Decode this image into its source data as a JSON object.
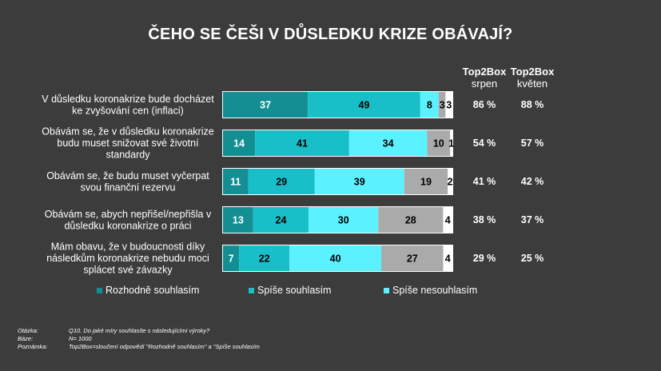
{
  "title": "ČEHO SE ČEŠI V DŮSLEDKU KRIZE OBÁVAJÍ?",
  "columns": {
    "srpen": {
      "line1": "Top2Box",
      "line2": "srpen"
    },
    "kveten": {
      "line1": "Top2Box",
      "line2": "květen"
    }
  },
  "legend": [
    "Rozhodně souhlasím",
    "Spíše souhlasím",
    "Spíše nesouhlasím"
  ],
  "colors": [
    "#138f94",
    "#18bfc8",
    "#5cf1ff",
    "#aaaaaa",
    "#ffffff"
  ],
  "footnotes": [
    {
      "key": "Otázka:",
      "value": "Q10. Do jaké míry souhlasíte s následujícími výroky?"
    },
    {
      "key": "Báze:",
      "value": "N= 1000"
    },
    {
      "key": "Poznámka:",
      "value": "Top2Box=sloučení odpovědí \"Rozhodně souhlasím\" a \"Spíše souhlasím"
    }
  ],
  "chart_data": {
    "type": "bar",
    "orientation": "horizontal",
    "stacked": true,
    "categories": [
      "V důsledku koronakrize bude docházet ke zvyšování cen (inflaci)",
      "Obávám se, že v důsledku koronakrize budu muset snižovat své životní standardy",
      "Obávám se, že budu muset vyčerpat svou finanční rezervu",
      "Obávám se, abych nepřišel/nepřišla v důsledku koronakrize o práci",
      "Mám obavu, že v budoucnosti díky následkům koronakrize nebudu moci splácet své závazky"
    ],
    "category_lines": [
      [
        "V důsledku koronakrize bude docházet",
        "ke zvyšování cen (inflaci)"
      ],
      [
        "Obávám se, že v důsledku koronakrize",
        "budu muset snižovat své životní",
        "standardy"
      ],
      [
        "Obávám se, že budu muset vyčerpat",
        "svou finanční rezervu"
      ],
      [
        "Obávám se, abych nepřišel/nepřišla v",
        "důsledku koronakrize o práci"
      ],
      [
        "Mám obavu, že v budoucnosti díky",
        "následkům koronakrize nebudu moci",
        "splácet své závazky"
      ]
    ],
    "series": [
      {
        "name": "Rozhodně souhlasím",
        "values": [
          37,
          14,
          11,
          13,
          7
        ]
      },
      {
        "name": "Spíše souhlasím",
        "values": [
          49,
          41,
          29,
          24,
          22
        ]
      },
      {
        "name": "Spíše nesouhlasím",
        "values": [
          8,
          34,
          39,
          30,
          40
        ]
      },
      {
        "name": "",
        "values": [
          3,
          10,
          19,
          28,
          27
        ]
      },
      {
        "name": "",
        "values": [
          3,
          1,
          2,
          4,
          4
        ]
      }
    ],
    "top2box_srpen": [
      "86 %",
      "54 %",
      "41 %",
      "38 %",
      "29 %"
    ],
    "top2box_kveten": [
      "88 %",
      "57 %",
      "42 %",
      "37 %",
      "25 %"
    ],
    "xlim": [
      0,
      100
    ]
  }
}
